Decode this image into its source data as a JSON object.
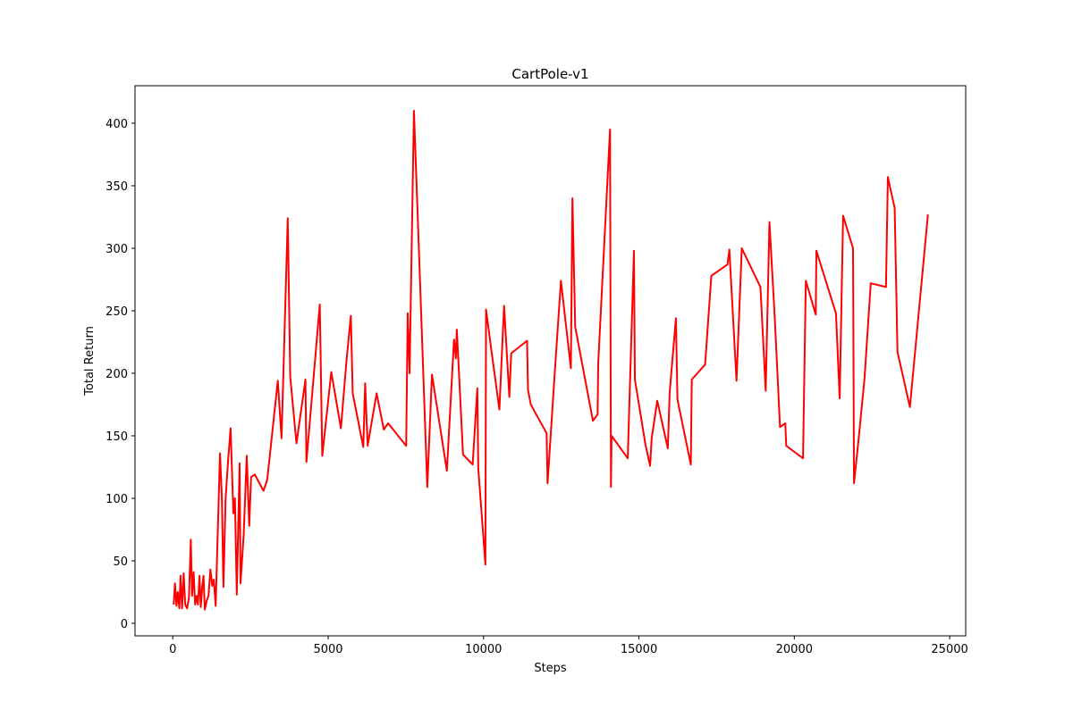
{
  "chart_data": {
    "type": "line",
    "title": "CartPole-v1",
    "xlabel": "Steps",
    "ylabel": "Total Return",
    "color": "#ff0000",
    "grid": false,
    "x": [
      30,
      70,
      120,
      160,
      210,
      250,
      300,
      350,
      400,
      460,
      520,
      580,
      620,
      670,
      720,
      770,
      810,
      860,
      900,
      950,
      990,
      1030,
      1090,
      1150,
      1210,
      1270,
      1320,
      1380,
      1520,
      1580,
      1630,
      1700,
      1780,
      1860,
      1950,
      2000,
      2060,
      2150,
      2180,
      2280,
      2380,
      2460,
      2520,
      2640,
      2920,
      3040,
      3380,
      3500,
      3700,
      3780,
      3980,
      4270,
      4300,
      4730,
      4810,
      5100,
      5410,
      5590,
      5730,
      5790,
      6130,
      6190,
      6270,
      6560,
      6790,
      6930,
      7510,
      7560,
      7620,
      7760,
      7940,
      8190,
      8340,
      8820,
      9050,
      9110,
      9140,
      9340,
      9650,
      9800,
      9830,
      10060,
      10080,
      10260,
      10510,
      10660,
      10830,
      10890,
      11400,
      11430,
      11520,
      12030,
      12060,
      12290,
      12490,
      12810,
      12860,
      12950,
      13520,
      13670,
      13690,
      14070,
      14100,
      14120,
      14640,
      14840,
      14870,
      15210,
      15360,
      15410,
      15590,
      15930,
      15990,
      16190,
      16240,
      16670,
      16700,
      17130,
      17330,
      17850,
      17910,
      18140,
      18310,
      18910,
      19080,
      19200,
      19370,
      19540,
      19710,
      19740,
      20280,
      20370,
      20690,
      20710,
      21340,
      21460,
      21570,
      21890,
      21920,
      22060,
      22260,
      22460,
      22950,
      23010,
      23230,
      23320,
      23720,
      24300
    ],
    "values": [
      15,
      32,
      14,
      25,
      12,
      38,
      12,
      40,
      15,
      12,
      20,
      67,
      22,
      41,
      15,
      22,
      15,
      38,
      13,
      30,
      38,
      11,
      18,
      22,
      43,
      30,
      35,
      14,
      136,
      100,
      29,
      100,
      130,
      156,
      88,
      100,
      23,
      128,
      32,
      70,
      134,
      78,
      117,
      119,
      106,
      115,
      194,
      148,
      324,
      197,
      144,
      195,
      129,
      255,
      134,
      201,
      156,
      210,
      246,
      184,
      141,
      192,
      142,
      184,
      155,
      160,
      142,
      248,
      200,
      410,
      285,
      109,
      199,
      122,
      227,
      212,
      235,
      135,
      127,
      188,
      124,
      47,
      251,
      217,
      171,
      254,
      181,
      216,
      226,
      187,
      175,
      152,
      112,
      200,
      274,
      204,
      340,
      237,
      162,
      167,
      208,
      395,
      109,
      150,
      132,
      298,
      195,
      143,
      126,
      148,
      178,
      140,
      185,
      244,
      179,
      127,
      195,
      207,
      278,
      287,
      299,
      194,
      300,
      269,
      186,
      321,
      245,
      157,
      160,
      142,
      132,
      274,
      247,
      298,
      248,
      180,
      326,
      300,
      112,
      145,
      196,
      272,
      269,
      357,
      332,
      217,
      173,
      327
    ],
    "xlim": [
      -1215,
      25515
    ],
    "ylim": [
      -10,
      430
    ],
    "xticks": [
      0,
      5000,
      10000,
      15000,
      20000,
      25000
    ],
    "yticks": [
      0,
      50,
      100,
      150,
      200,
      250,
      300,
      350,
      400
    ]
  }
}
